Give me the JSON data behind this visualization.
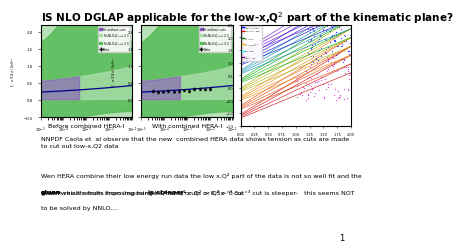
{
  "title": "IS NLO DGLAP applicable for the low-x,Q$^2$ part of the kinematic plane?",
  "title_fontsize": 7.5,
  "caption1": "Before combined HERA-I",
  "caption2": "With combined HERA-I",
  "text_block1": "NNPDF Caola et  al observe that the new  combined HERA data shows tension as cuts are made\nto cut out low-x,Q2 data",
  "text_block2_l1": "Wen HERA combine their low energy run data the low x,Q² part of the data is not so well fit and the",
  "text_block2_l2a": " which results from imposing harder Q² cuts or Q² > 0.5x °³ cut ",
  "text_block2_l2b": "is steeper-",
  "text_block2_l2c": "   this seems NOT",
  "text_block2_l3": "to be solved by NNLO....",
  "page_number": "1"
}
